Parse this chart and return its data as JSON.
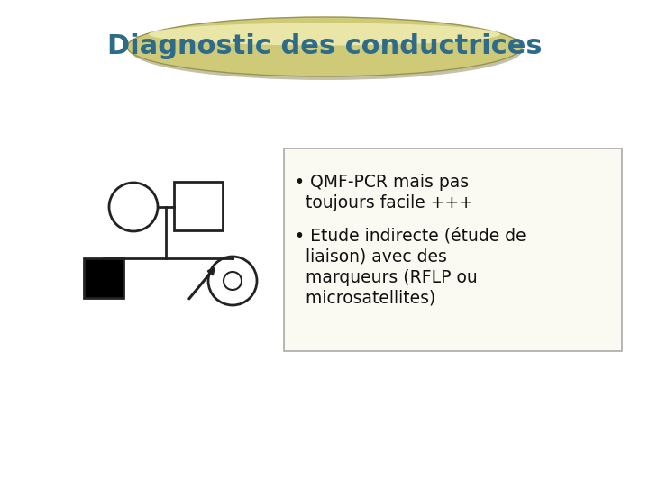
{
  "title": "Diagnostic des conductrices",
  "title_color": "#2E6B8A",
  "title_fontsize": 22,
  "bg_color": "#ffffff",
  "bullet1_line1": "• QMF-PCR mais pas",
  "bullet1_line2": "  toujours facile +++",
  "bullet2_line1": "• Etude indirecte (étude de",
  "bullet2_line2": "  liaison) avec des",
  "bullet2_line3": "  marqueurs (RFLP ou",
  "bullet2_line4": "  microsatellites)",
  "text_color": "#111111",
  "text_fontsize": 13.5,
  "box_border_color": "#AAAAAA",
  "box_bg_color": "#FAFAF2",
  "dark": "#222222",
  "ellipse_main_color": "#CECA78",
  "ellipse_shadow_color": "#7A7840",
  "ellipse_highlight_color": "#EFECB0",
  "ellipse_edge_color": "#9A9450"
}
